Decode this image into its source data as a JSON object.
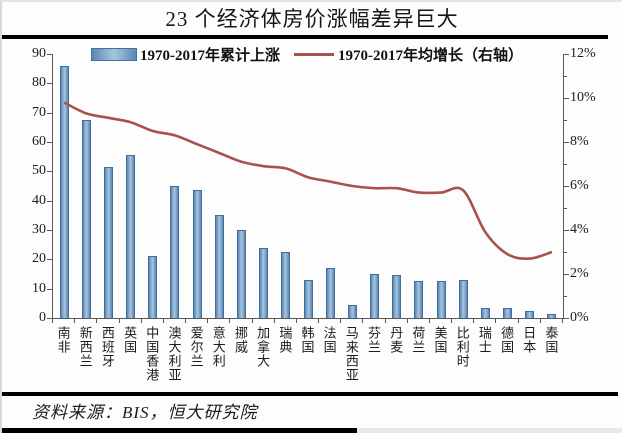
{
  "page": {
    "title": "23 个经济体房价涨幅差异巨大",
    "source_label": "资料来源：BIS，恒大研究院"
  },
  "chart_data": {
    "type": "bar",
    "subtype": "bar-line-combo-dual-axis",
    "title": "23 个经济体房价涨幅差异巨大",
    "categories": [
      "南非",
      "新西兰",
      "西班牙",
      "英国",
      "中国香港",
      "澳大利亚",
      "爱尔兰",
      "意大利",
      "挪威",
      "加拿大",
      "瑞典",
      "韩国",
      "法国",
      "马来西亚",
      "芬兰",
      "丹麦",
      "荷兰",
      "美国",
      "比利时",
      "瑞士",
      "德国",
      "日本",
      "泰国"
    ],
    "series": [
      {
        "name": "1970-2017年累计上涨",
        "type": "bar",
        "axis": "left",
        "values": [
          86,
          67.5,
          51.5,
          55.5,
          21,
          45,
          43.5,
          35,
          30,
          24,
          22.5,
          13,
          17,
          4.5,
          15,
          14.5,
          12.5,
          12.5,
          13,
          3.5,
          3.5,
          2.5,
          1.5
        ]
      },
      {
        "name": "1970-2017年均增长（右轴）",
        "type": "line",
        "axis": "right",
        "values": [
          9.8,
          9.3,
          9.1,
          8.9,
          8.5,
          8.3,
          7.9,
          7.5,
          7.1,
          6.9,
          6.8,
          6.4,
          6.2,
          6.0,
          5.9,
          5.9,
          5.7,
          5.7,
          5.8,
          3.9,
          2.9,
          2.7,
          3.0
        ]
      }
    ],
    "left_axis": {
      "min": 0,
      "max": 90,
      "step": 10,
      "suffix": ""
    },
    "right_axis": {
      "min": 0,
      "max": 12,
      "step": 2,
      "minor_step": 1,
      "suffix": "%"
    },
    "legend_position": "top-center",
    "grid": false,
    "colors": {
      "bar_edge": "#44719f",
      "bar_mid": "#a6c6e0",
      "bar_main": "#5c88b4",
      "line": "#a9524d",
      "axis": "#595959",
      "rule": "#000000"
    }
  }
}
